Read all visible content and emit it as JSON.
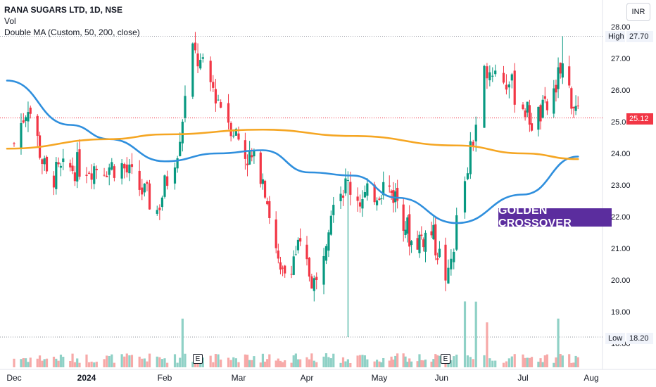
{
  "header": {
    "title": "RANA SUGARS LTD, 1D, NSE",
    "vol_label": "Vol",
    "ma_label": "Double MA (Custom, 50, 200, close)",
    "currency": "INR"
  },
  "annotation": "GOLDEN CROSSOVER",
  "price_tags": {
    "high_label": "High",
    "high_value": "27.70",
    "low_label": "Low",
    "low_value": "18.20",
    "last_value": "25.12"
  },
  "earnings_marker": "E",
  "colors": {
    "up": "#089981",
    "down": "#f23645",
    "ma50": "#2f8fdd",
    "ma200": "#f5a623",
    "vol_up": "#8fd1c6",
    "vol_down": "#f7a9a8",
    "annotation_bg": "#5b2d9e"
  },
  "chart_data": {
    "type": "candlestick",
    "ylim": [
      17.5,
      28.4
    ],
    "y_ticks": [
      "28.00",
      "27.00",
      "26.00",
      "25.00",
      "24.00",
      "23.00",
      "22.00",
      "21.00",
      "20.00",
      "19.00",
      "18.00"
    ],
    "x_ticks": [
      "Dec",
      "2024",
      "Feb",
      "Mar",
      "Apr",
      "May",
      "Jun",
      "Jul",
      "Aug"
    ],
    "high": 27.7,
    "low": 18.2,
    "last": 25.12,
    "ohlc_anchors": [
      {
        "date": "2023-12-01",
        "close": 24.3
      },
      {
        "date": "2023-12-07",
        "close": 25.6
      },
      {
        "date": "2023-12-15",
        "close": 23.2
      },
      {
        "date": "2023-12-28",
        "close": 23.6
      },
      {
        "date": "2024-01-15",
        "close": 23.6
      },
      {
        "date": "2024-01-29",
        "close": 22.2
      },
      {
        "date": "2024-02-06",
        "close": 24.2
      },
      {
        "date": "2024-02-12",
        "close": 27.2
      },
      {
        "date": "2024-02-21",
        "close": 25.9
      },
      {
        "date": "2024-03-04",
        "close": 24.0
      },
      {
        "date": "2024-03-12",
        "close": 23.4
      },
      {
        "date": "2024-03-20",
        "close": 20.0
      },
      {
        "date": "2024-03-28",
        "close": 21.0
      },
      {
        "date": "2024-04-05",
        "close": 19.8
      },
      {
        "date": "2024-04-12",
        "close": 22.8
      },
      {
        "date": "2024-04-18",
        "close": 23.0
      },
      {
        "date": "2024-04-24",
        "close": 22.5
      },
      {
        "date": "2024-05-03",
        "close": 23.0
      },
      {
        "date": "2024-05-10",
        "close": 22.6
      },
      {
        "date": "2024-05-17",
        "close": 21.2
      },
      {
        "date": "2024-05-27",
        "close": 21.5
      },
      {
        "date": "2024-06-04",
        "close": 20.0
      },
      {
        "date": "2024-06-07",
        "close": 21.8
      },
      {
        "date": "2024-06-12",
        "close": 24.0
      },
      {
        "date": "2024-06-18",
        "close": 26.8
      },
      {
        "date": "2024-06-26",
        "close": 26.2
      },
      {
        "date": "2024-07-05",
        "close": 25.0
      },
      {
        "date": "2024-07-12",
        "close": 25.4
      },
      {
        "date": "2024-07-19",
        "close": 26.7
      },
      {
        "date": "2024-07-26",
        "close": 25.12
      }
    ],
    "series": [
      {
        "name": "MA 50",
        "points": [
          {
            "date": "2023-11-28",
            "value": 26.3
          },
          {
            "date": "2023-12-25",
            "value": 24.9
          },
          {
            "date": "2024-01-10",
            "value": 24.45
          },
          {
            "date": "2024-02-01",
            "value": 23.75
          },
          {
            "date": "2024-02-22",
            "value": 24.0
          },
          {
            "date": "2024-03-12",
            "value": 24.1
          },
          {
            "date": "2024-04-02",
            "value": 23.4
          },
          {
            "date": "2024-04-20",
            "value": 23.3
          },
          {
            "date": "2024-05-10",
            "value": 22.6
          },
          {
            "date": "2024-06-07",
            "value": 21.8
          },
          {
            "date": "2024-07-01",
            "value": 22.7
          },
          {
            "date": "2024-07-26",
            "value": 23.9
          }
        ]
      },
      {
        "name": "MA 200",
        "points": [
          {
            "date": "2023-11-28",
            "value": 24.15
          },
          {
            "date": "2024-01-10",
            "value": 24.45
          },
          {
            "date": "2024-02-01",
            "value": 24.6
          },
          {
            "date": "2024-03-12",
            "value": 24.75
          },
          {
            "date": "2024-04-20",
            "value": 24.55
          },
          {
            "date": "2024-06-07",
            "value": 24.25
          },
          {
            "date": "2024-07-01",
            "value": 24.0
          },
          {
            "date": "2024-07-26",
            "value": 23.82
          }
        ]
      }
    ]
  }
}
